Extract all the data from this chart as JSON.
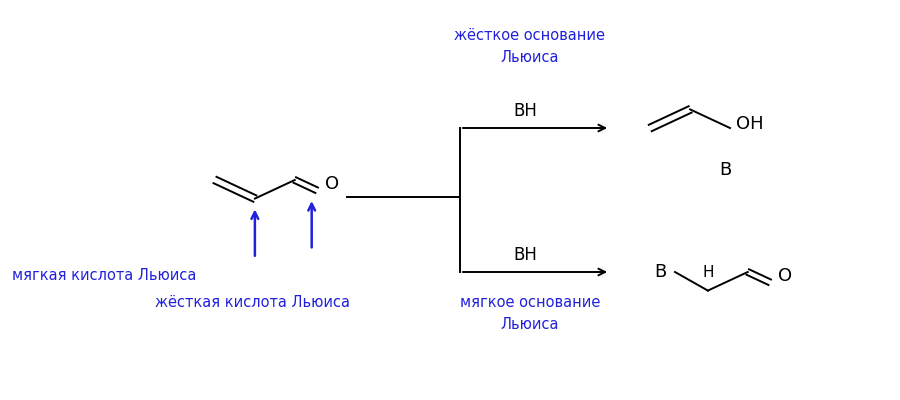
{
  "bg_color": "#ffffff",
  "blue_color": "#2020dd",
  "black_color": "#000000",
  "label_soft_acid": "мягкая кислота Льюиса",
  "label_hard_acid": "жёсткая кислота Льюиса",
  "label_hard_base_line1": "жёсткое основание",
  "label_hard_base_line2": "Льюиса",
  "label_soft_base_line1": "мягкое основание",
  "label_soft_base_line2": "Льюиса",
  "label_BH": "BH",
  "font_size_label": 10.5,
  "font_size_mol": 13,
  "font_size_BH": 12
}
